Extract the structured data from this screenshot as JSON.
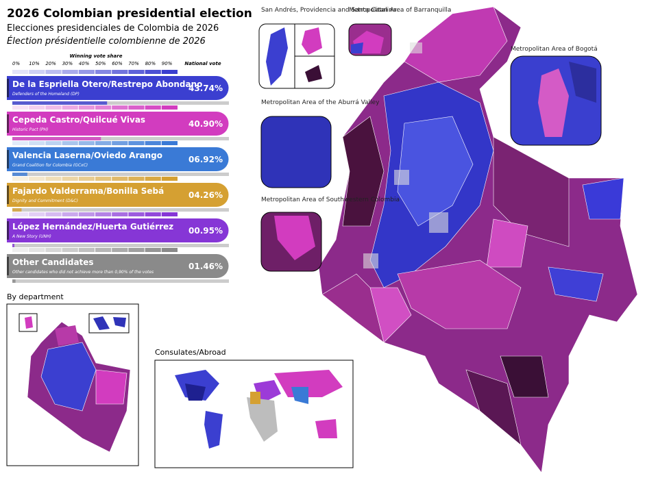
{
  "header": {
    "title": "2026 Colombian presidential election",
    "subtitle_es": "Elecciones presidenciales de Colombia de 2026",
    "subtitle_fr": "Élection présidentielle colombienne de 2026"
  },
  "legend": {
    "title": "Winning vote share",
    "ticks": [
      "0%",
      "10%",
      "20%",
      "30%",
      "40%",
      "50%",
      "60%",
      "70%",
      "80%",
      "90%"
    ],
    "national_label": "National vote"
  },
  "candidates": [
    {
      "name": "De la Espriella Otero/Restrepo Abondano",
      "party": "Defenders of the Homeland (DP)",
      "share": {
        "value": 43.74,
        "label": "43.74%"
      },
      "color": "#3b3fd0"
    },
    {
      "name": "Cepeda Castro/Quilcué Vivas",
      "party": "Historic Pact (PH)",
      "share": {
        "value": 40.9,
        "label": "40.90%"
      },
      "color": "#d23cbf"
    },
    {
      "name": "Valencia Laserna/Oviedo Arango",
      "party": "Grand Coalition for Colombia (GCxC)",
      "share": {
        "value": 6.92,
        "label": "06.92%"
      },
      "color": "#3a7ad6"
    },
    {
      "name": "Fajardo Valderrama/Bonilla Sebá",
      "party": "Dignity and Commitment (D&C)",
      "share": {
        "value": 4.26,
        "label": "04.26%"
      },
      "color": "#d5a032"
    },
    {
      "name": "López Hernández/Huerta Gutiérrez",
      "party": "A New Story (UNH)",
      "share": {
        "value": 0.95,
        "label": "00.95%"
      },
      "color": "#8636d6"
    },
    {
      "name": "Other Candidates",
      "party": "Other candidates who did not achieve more than 0,90% of the votes",
      "share": {
        "value": 1.46,
        "label": "01.46%"
      },
      "color": "#8a8a8a"
    }
  ],
  "insets": {
    "san_andres": "San Andrés, Providencia and Santa Catalina",
    "barranquilla": "Metropolitan Area of Barranquilla",
    "bogota": "Metropolitan Area of Bogotá",
    "aburra": "Metropolitan Area of the Aburrá Valley",
    "southwestern": "Metropolitan Area of Southwestern Colombia"
  },
  "panels": {
    "by_department": "By department",
    "abroad": "Consulates/Abroad"
  }
}
